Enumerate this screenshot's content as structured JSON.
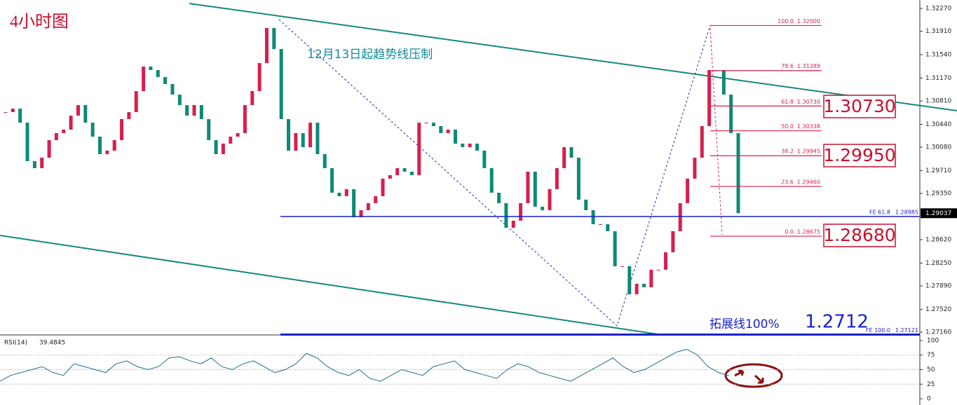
{
  "chart_data": [
    {
      "type": "candlestick",
      "title": "4小时图",
      "up_color": "#d81f4c",
      "down_color": "#0d8a78",
      "ylim": [
        1.27116,
        1.32403
      ],
      "yticks": [
        {
          "value": 1.3227,
          "label": "1.32270"
        },
        {
          "value": 1.3191,
          "label": "1.31910"
        },
        {
          "value": 1.3154,
          "label": "1.31540"
        },
        {
          "value": 1.3117,
          "label": "1.31170"
        },
        {
          "value": 1.3081,
          "label": "1.30810"
        },
        {
          "value": 1.3044,
          "label": "1.30440"
        },
        {
          "value": 1.3008,
          "label": "1.30080"
        },
        {
          "value": 1.2971,
          "label": "1.29710"
        },
        {
          "value": 1.2935,
          "label": "1.29350"
        },
        {
          "value": 1.2862,
          "label": "1.28620"
        },
        {
          "value": 1.2825,
          "label": "1.28250"
        },
        {
          "value": 1.2789,
          "label": "1.27890"
        },
        {
          "value": 1.2752,
          "label": "1.27520"
        },
        {
          "value": 1.2716,
          "label": "1.27160"
        }
      ],
      "current_price": {
        "value": 1.29037,
        "label": "1.29037"
      },
      "values": [
        1.30633,
        1.30689,
        1.30467,
        1.29859,
        1.29749,
        1.29914,
        1.30191,
        1.30302,
        1.30357,
        1.30578,
        1.30744,
        1.30467,
        1.30246,
        1.2997,
        1.30025,
        1.30191,
        1.30523,
        1.30633,
        1.30965,
        1.31352,
        1.31297,
        1.31186,
        1.31076,
        1.3091,
        1.30744,
        1.30578,
        1.30744,
        1.30523,
        1.30191,
        1.2997,
        1.30136,
        1.30246,
        1.30302,
        1.30744,
        1.30965,
        1.31408,
        1.31961,
        1.31629,
        1.30523,
        1.30025,
        1.30302,
        1.3008,
        1.30467,
        1.2997,
        1.29749,
        1.29361,
        1.29306,
        1.29417,
        1.28974,
        1.29085,
        1.29196,
        1.29306,
        1.29583,
        1.29638,
        1.29749,
        1.29693,
        1.29638,
        1.30467,
        1.30467,
        1.30412,
        1.30302,
        1.30357,
        1.30136,
        1.3008,
        1.30136,
        1.30025,
        1.29749,
        1.29361,
        1.29196,
        1.28808,
        1.28919,
        1.29196,
        1.29693,
        1.2914,
        1.29085,
        1.29417,
        1.29749,
        1.3008,
        1.29914,
        1.29251,
        1.29085,
        1.28864,
        1.28864,
        1.28753,
        1.282,
        1.282,
        1.27758,
        1.27924,
        1.27868,
        1.28145,
        1.28145,
        1.28421,
        1.28753,
        1.29196,
        1.29583,
        1.29914,
        1.30412,
        1.31297,
        1.31297,
        1.3091,
        1.30302,
        1.29037
      ]
    },
    {
      "type": "line",
      "name": "RSI(14)",
      "current": 39.4845,
      "color": "#1c6f86",
      "ylim": [
        -10.8,
        107.2
      ],
      "yticks": [
        100,
        75,
        50,
        25,
        0
      ],
      "values": [
        30,
        40,
        45,
        50,
        55,
        45,
        40,
        60,
        55,
        50,
        45,
        60,
        65,
        55,
        50,
        55,
        70,
        72,
        65,
        60,
        70,
        55,
        50,
        60,
        65,
        55,
        45,
        50,
        60,
        78,
        70,
        55,
        45,
        40,
        50,
        35,
        30,
        40,
        50,
        45,
        40,
        55,
        60,
        65,
        50,
        45,
        40,
        35,
        50,
        60,
        55,
        45,
        40,
        35,
        30,
        40,
        50,
        60,
        70,
        55,
        45,
        50,
        60,
        70,
        80,
        85,
        75,
        55,
        45,
        39.4845
      ]
    }
  ],
  "annotation": "12月13日起趋势线压制",
  "fibonacci": [
    {
      "level": "100.0",
      "price": {
        "value": 1.32,
        "label": "1.32000"
      }
    },
    {
      "level": "78.6",
      "price": {
        "value": 1.31289,
        "label": "1.31289"
      }
    },
    {
      "level": "61.8",
      "price": {
        "value": 1.3073,
        "label": "1.30730"
      }
    },
    {
      "level": "50.0",
      "price": {
        "value": 1.30338,
        "label": "1.30338"
      }
    },
    {
      "level": "38.2",
      "price": {
        "value": 1.29945,
        "label": "1.29945"
      }
    },
    {
      "level": "23.6",
      "price": {
        "value": 1.2946,
        "label": "1.29460"
      }
    },
    {
      "level": "0.0",
      "price": {
        "value": 1.28675,
        "label": "1.28675"
      }
    }
  ],
  "fe_levels": [
    {
      "level": "FE 61.8",
      "price": {
        "value": 1.28985,
        "label": "1.28985"
      }
    },
    {
      "level": "FE 100.0",
      "price": {
        "value": 1.27121,
        "label": "1.27121"
      }
    }
  ],
  "callouts": [
    "1.30730",
    "1.29950",
    "1.28680"
  ],
  "extension_label": "拓展线100%",
  "extension_value": "1.2712"
}
